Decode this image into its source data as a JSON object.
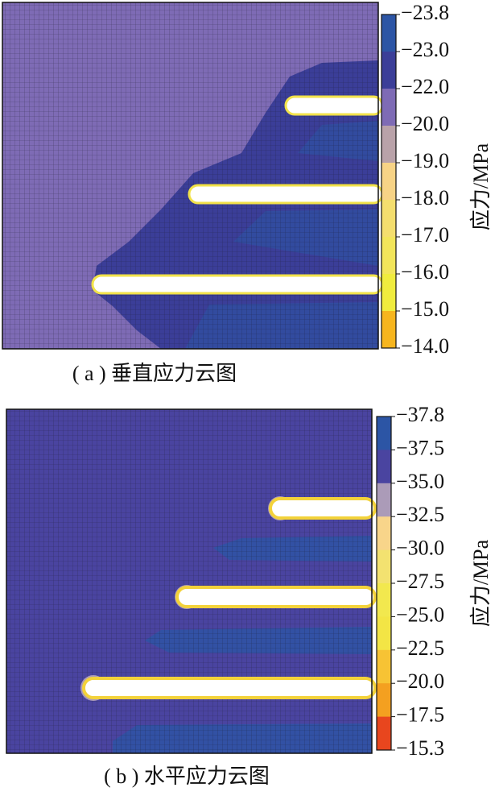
{
  "chart_data": [
    {
      "type": "contour",
      "caption": "( a ) 垂直应力云图",
      "colorbar_label": "应力/MPa",
      "colorbar_ticks": [
        {
          "value": -23.8,
          "label": "−23.8"
        },
        {
          "value": -23.0,
          "label": "−23.0"
        },
        {
          "value": -22.0,
          "label": "−22.0"
        },
        {
          "value": -20.0,
          "label": "−20.0"
        },
        {
          "value": -19.0,
          "label": "−19.0"
        },
        {
          "value": -18.0,
          "label": "−18.0"
        },
        {
          "value": -17.0,
          "label": "−17.0"
        },
        {
          "value": -16.0,
          "label": "−16.0"
        },
        {
          "value": -15.0,
          "label": "−15.0"
        },
        {
          "value": -14.0,
          "label": "−14.0"
        }
      ],
      "colors": [
        "#2c55a5",
        "#3b3e98",
        "#7e6bb5",
        "#b9a2a9",
        "#f7d386",
        "#f4de6e",
        "#f2e55a",
        "#f0ec3e",
        "#f6b51e"
      ]
    },
    {
      "type": "contour",
      "caption": "( b ) 水平应力云图",
      "colorbar_label": "应力/MPa",
      "colorbar_ticks": [
        {
          "value": -37.8,
          "label": "−37.8"
        },
        {
          "value": -37.5,
          "label": "−37.5"
        },
        {
          "value": -35.0,
          "label": "−35.0"
        },
        {
          "value": -32.5,
          "label": "−32.5"
        },
        {
          "value": -30.0,
          "label": "−30.0"
        },
        {
          "value": -27.5,
          "label": "−27.5"
        },
        {
          "value": -25.0,
          "label": "−25.0"
        },
        {
          "value": -22.5,
          "label": "−22.5"
        },
        {
          "value": -20.0,
          "label": "−20.0"
        },
        {
          "value": -17.5,
          "label": "−17.5"
        },
        {
          "value": -15.3,
          "label": "−15.3"
        }
      ],
      "colors": [
        "#2c55a5",
        "#4a44a0",
        "#ab9bb8",
        "#f8d58a",
        "#f3e270",
        "#f2e84e",
        "#f3e545",
        "#f7c334",
        "#f4a020",
        "#e8461e"
      ]
    }
  ]
}
